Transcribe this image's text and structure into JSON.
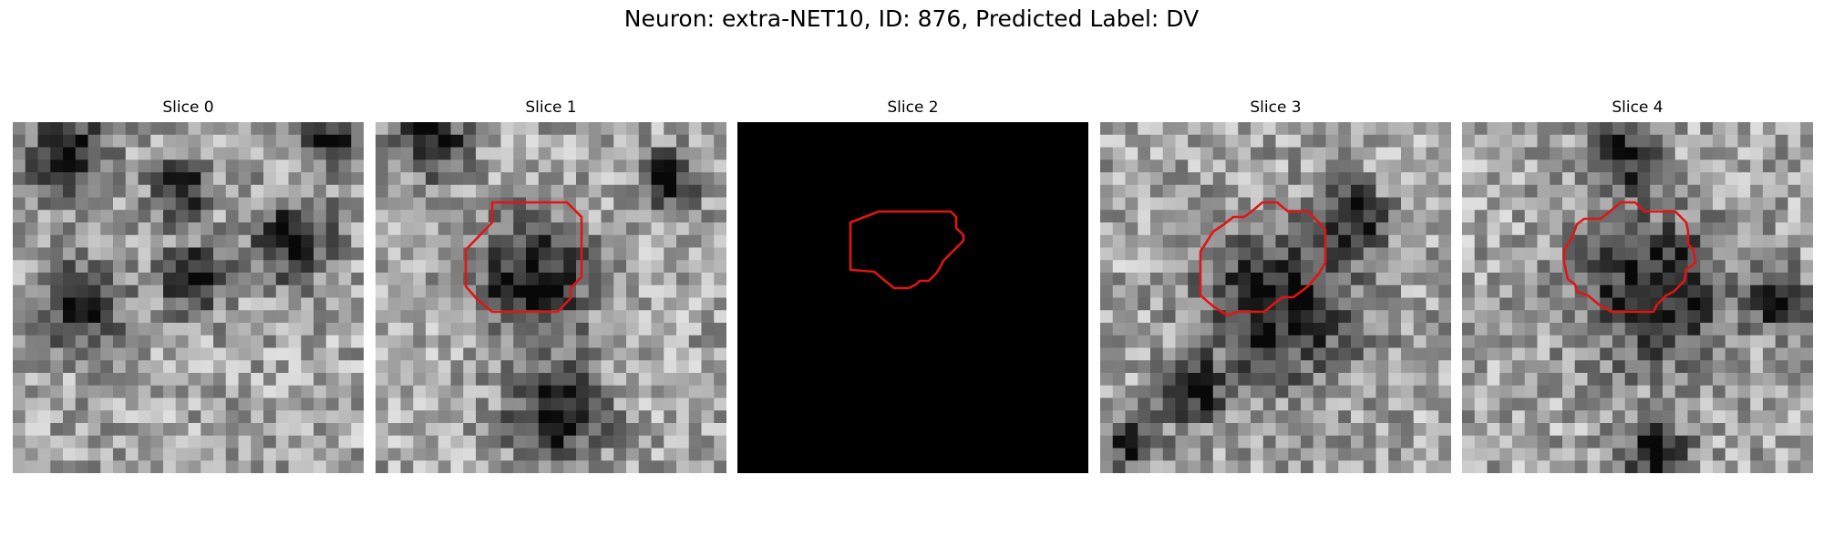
{
  "figure": {
    "title": "Neuron: extra-NET10, ID: 876, Predicted Label: DV"
  },
  "panels": [
    {
      "title": "Slice 0",
      "image": "grayscale-microscopy-patch",
      "contour": false,
      "blank": false,
      "seed": 11,
      "blobs": [
        [
          4,
          2,
          2.2
        ],
        [
          13,
          5,
          1.6
        ],
        [
          5,
          14,
          2.4
        ],
        [
          14,
          12,
          1.8
        ],
        [
          25,
          1,
          1.6
        ],
        [
          22,
          9,
          2.2
        ]
      ]
    },
    {
      "title": "Slice 1",
      "image": "grayscale-microscopy-patch",
      "contour": true,
      "blank": false,
      "seed": 23,
      "blobs": [
        [
          12,
          12,
          3.2
        ],
        [
          4,
          1,
          2.0
        ],
        [
          14,
          23,
          2.6
        ],
        [
          23,
          4,
          1.6
        ]
      ]
    },
    {
      "title": "Slice 2",
      "image": "black-patch",
      "contour": true,
      "blank": true,
      "seed": 0,
      "blobs": []
    },
    {
      "title": "Slice 3",
      "image": "grayscale-microscopy-patch",
      "contour": true,
      "blank": true,
      "seed": 37,
      "blobs": [
        [
          14,
          14,
          4.2
        ],
        [
          7,
          21,
          1.6
        ],
        [
          2,
          25,
          1.5
        ],
        [
          20,
          7,
          1.6
        ]
      ]
    },
    {
      "title": "Slice 4",
      "image": "grayscale-microscopy-patch",
      "contour": true,
      "blank": false,
      "seed": 51,
      "blobs": [
        [
          15,
          13,
          4.0
        ],
        [
          12,
          2,
          2.0
        ],
        [
          25,
          14,
          1.6
        ],
        [
          15,
          26,
          1.8
        ]
      ]
    }
  ],
  "colors": {
    "contour": "#e01515",
    "background": "#ffffff"
  }
}
